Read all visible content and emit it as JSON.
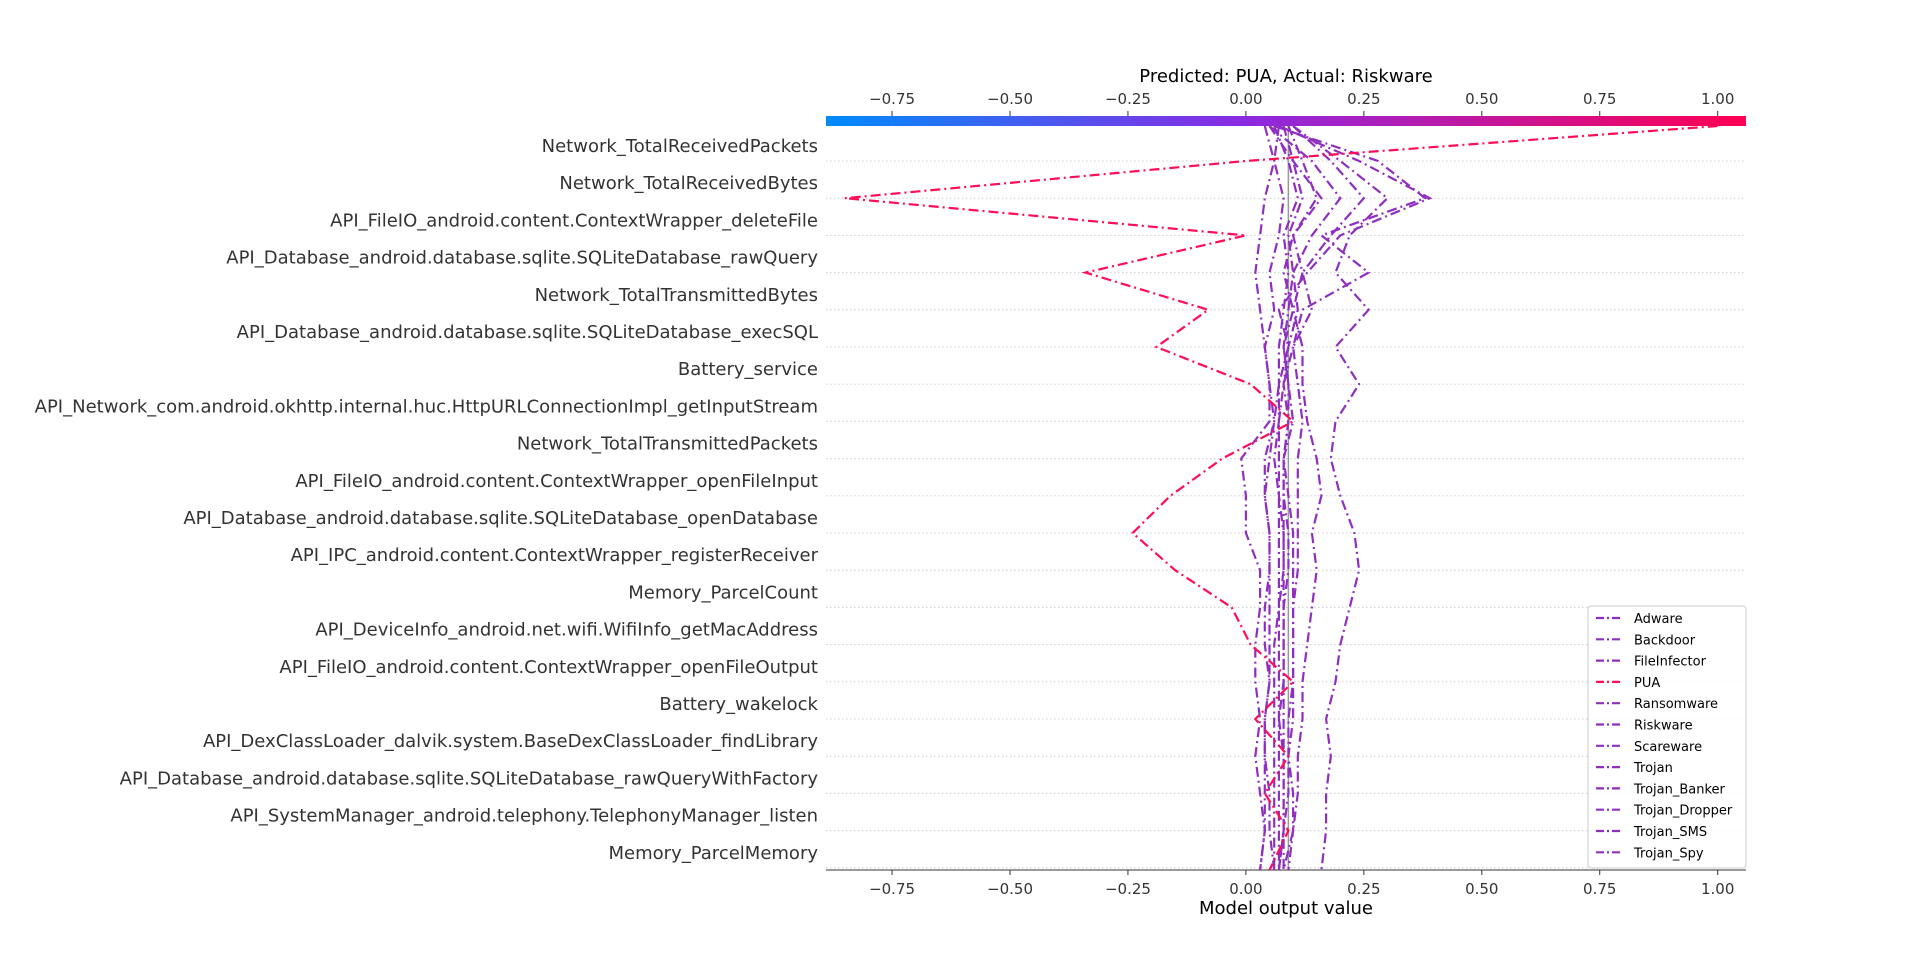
{
  "chart_data": {
    "type": "line",
    "title": "Predicted: PUA, Actual: Riskware",
    "xlabel": "Model output value",
    "xlim": [
      -0.89,
      1.06
    ],
    "x_ticks": [
      "−0.75",
      "−0.50",
      "−0.25",
      "0.00",
      "0.25",
      "0.50",
      "0.75",
      "1.00"
    ],
    "x_tick_values": [
      -0.75,
      -0.5,
      -0.25,
      0.0,
      0.25,
      0.5,
      0.75,
      1.0
    ],
    "base_value": 0.09,
    "features": [
      "Network_TotalReceivedPackets",
      "Network_TotalReceivedBytes",
      "API_FileIO_android.content.ContextWrapper_deleteFile",
      "API_Database_android.database.sqlite.SQLiteDatabase_rawQuery",
      "Network_TotalTransmittedBytes",
      "API_Database_android.database.sqlite.SQLiteDatabase_execSQL",
      "Battery_service",
      "API_Network_com.android.okhttp.internal.huc.HttpURLConnectionImpl_getInputStream",
      "Network_TotalTransmittedPackets",
      "API_FileIO_android.content.ContextWrapper_openFileInput",
      "API_Database_android.database.sqlite.SQLiteDatabase_openDatabase",
      "API_IPC_android.content.ContextWrapper_registerReceiver",
      "Memory_ParcelCount",
      "API_DeviceInfo_android.net.wifi.WifiInfo_getMacAddress",
      "API_FileIO_android.content.ContextWrapper_openFileOutput",
      "Battery_wakelock",
      "API_DexClassLoader_dalvik.system.BaseDexClassLoader_findLibrary",
      "API_Database_android.database.sqlite.SQLiteDatabase_rawQueryWithFactory",
      "API_SystemManager_android.telephony.TelephonyManager_listen",
      "Memory_ParcelMemory"
    ],
    "colorbar": {
      "left_color": "#008bfb",
      "mid_color": "#8a2be2",
      "right_color": "#ff0052"
    },
    "series": [
      {
        "name": "Adware",
        "color": "#8f2fc0",
        "values": [
          0.07,
          0.06,
          0.04,
          0.03,
          0.02,
          0.03,
          0.04,
          0.05,
          0.06,
          0.05,
          0.04,
          0.05,
          0.05,
          0.04,
          0.04,
          0.05,
          0.04,
          0.04,
          0.05,
          0.05,
          0.06
        ]
      },
      {
        "name": "Backdoor",
        "color": "#8f2fc0",
        "values": [
          0.09,
          0.12,
          0.15,
          0.1,
          0.12,
          0.1,
          0.08,
          0.09,
          0.1,
          0.08,
          0.09,
          0.1,
          0.1,
          0.1,
          0.1,
          0.1,
          0.09,
          0.09,
          0.1,
          0.1,
          0.09
        ]
      },
      {
        "name": "FileInfector",
        "color": "#8f2fc0",
        "values": [
          0.1,
          0.18,
          0.25,
          0.18,
          0.12,
          0.14,
          0.1,
          0.11,
          0.12,
          0.11,
          0.11,
          0.11,
          0.11,
          0.1,
          0.1,
          0.1,
          0.1,
          0.09,
          0.09,
          0.08,
          0.07
        ]
      },
      {
        "name": "PUA",
        "color": "#ff0d57",
        "values": [
          1.0,
          0.0,
          -0.85,
          0.0,
          -0.34,
          -0.08,
          -0.19,
          0.01,
          0.1,
          -0.05,
          -0.16,
          -0.24,
          -0.15,
          -0.03,
          0.01,
          0.1,
          0.02,
          0.09,
          0.04,
          0.09,
          0.05
        ]
      },
      {
        "name": "Ransomware",
        "color": "#8f2fc0",
        "values": [
          0.07,
          0.24,
          0.39,
          0.2,
          0.13,
          0.07,
          0.09,
          0.07,
          0.06,
          0.04,
          0.04,
          0.05,
          0.05,
          0.05,
          0.05,
          0.05,
          0.04,
          0.04,
          0.04,
          0.04,
          0.03
        ]
      },
      {
        "name": "Riskware",
        "color": "#8f2fc0",
        "values": [
          0.06,
          0.28,
          0.38,
          0.16,
          0.26,
          0.12,
          0.1,
          0.08,
          0.07,
          0.07,
          0.07,
          0.08,
          0.08,
          0.07,
          0.07,
          0.07,
          0.07,
          0.07,
          0.07,
          0.07,
          0.07
        ]
      },
      {
        "name": "Scareware",
        "color": "#8f2fc0",
        "values": [
          0.04,
          0.06,
          0.08,
          0.07,
          0.05,
          0.06,
          0.04,
          0.05,
          0.05,
          -0.01,
          0.0,
          0.0,
          0.03,
          0.03,
          0.02,
          0.02,
          0.03,
          0.02,
          0.03,
          0.04,
          0.03
        ]
      },
      {
        "name": "Trojan",
        "color": "#8f2fc0",
        "values": [
          0.05,
          0.14,
          0.2,
          0.14,
          0.1,
          0.11,
          0.09,
          0.08,
          0.09,
          0.08,
          0.08,
          0.08,
          0.08,
          0.08,
          0.08,
          0.08,
          0.07,
          0.08,
          0.08,
          0.08,
          0.07
        ]
      },
      {
        "name": "Trojan_Banker",
        "color": "#8f2fc0",
        "values": [
          0.08,
          0.1,
          0.12,
          0.09,
          0.1,
          0.09,
          0.08,
          0.09,
          0.09,
          0.08,
          0.08,
          0.09,
          0.09,
          0.08,
          0.08,
          0.08,
          0.08,
          0.08,
          0.08,
          0.08,
          0.08
        ]
      },
      {
        "name": "Trojan_Dropper",
        "color": "#8f2fc0",
        "values": [
          0.06,
          0.09,
          0.11,
          0.08,
          0.09,
          0.08,
          0.07,
          0.07,
          0.07,
          0.06,
          0.07,
          0.07,
          0.07,
          0.07,
          0.06,
          0.06,
          0.06,
          0.06,
          0.06,
          0.06,
          0.06
        ]
      },
      {
        "name": "Trojan_SMS",
        "color": "#8f2fc0",
        "values": [
          0.1,
          0.2,
          0.3,
          0.22,
          0.19,
          0.26,
          0.19,
          0.24,
          0.19,
          0.18,
          0.2,
          0.23,
          0.24,
          0.22,
          0.2,
          0.19,
          0.17,
          0.18,
          0.17,
          0.17,
          0.16
        ]
      },
      {
        "name": "Trojan_Spy",
        "color": "#8f2fc0",
        "values": [
          0.05,
          0.1,
          0.16,
          0.1,
          0.08,
          0.1,
          0.12,
          0.12,
          0.13,
          0.15,
          0.16,
          0.14,
          0.15,
          0.14,
          0.13,
          0.12,
          0.12,
          0.11,
          0.11,
          0.1,
          0.08
        ]
      }
    ]
  }
}
